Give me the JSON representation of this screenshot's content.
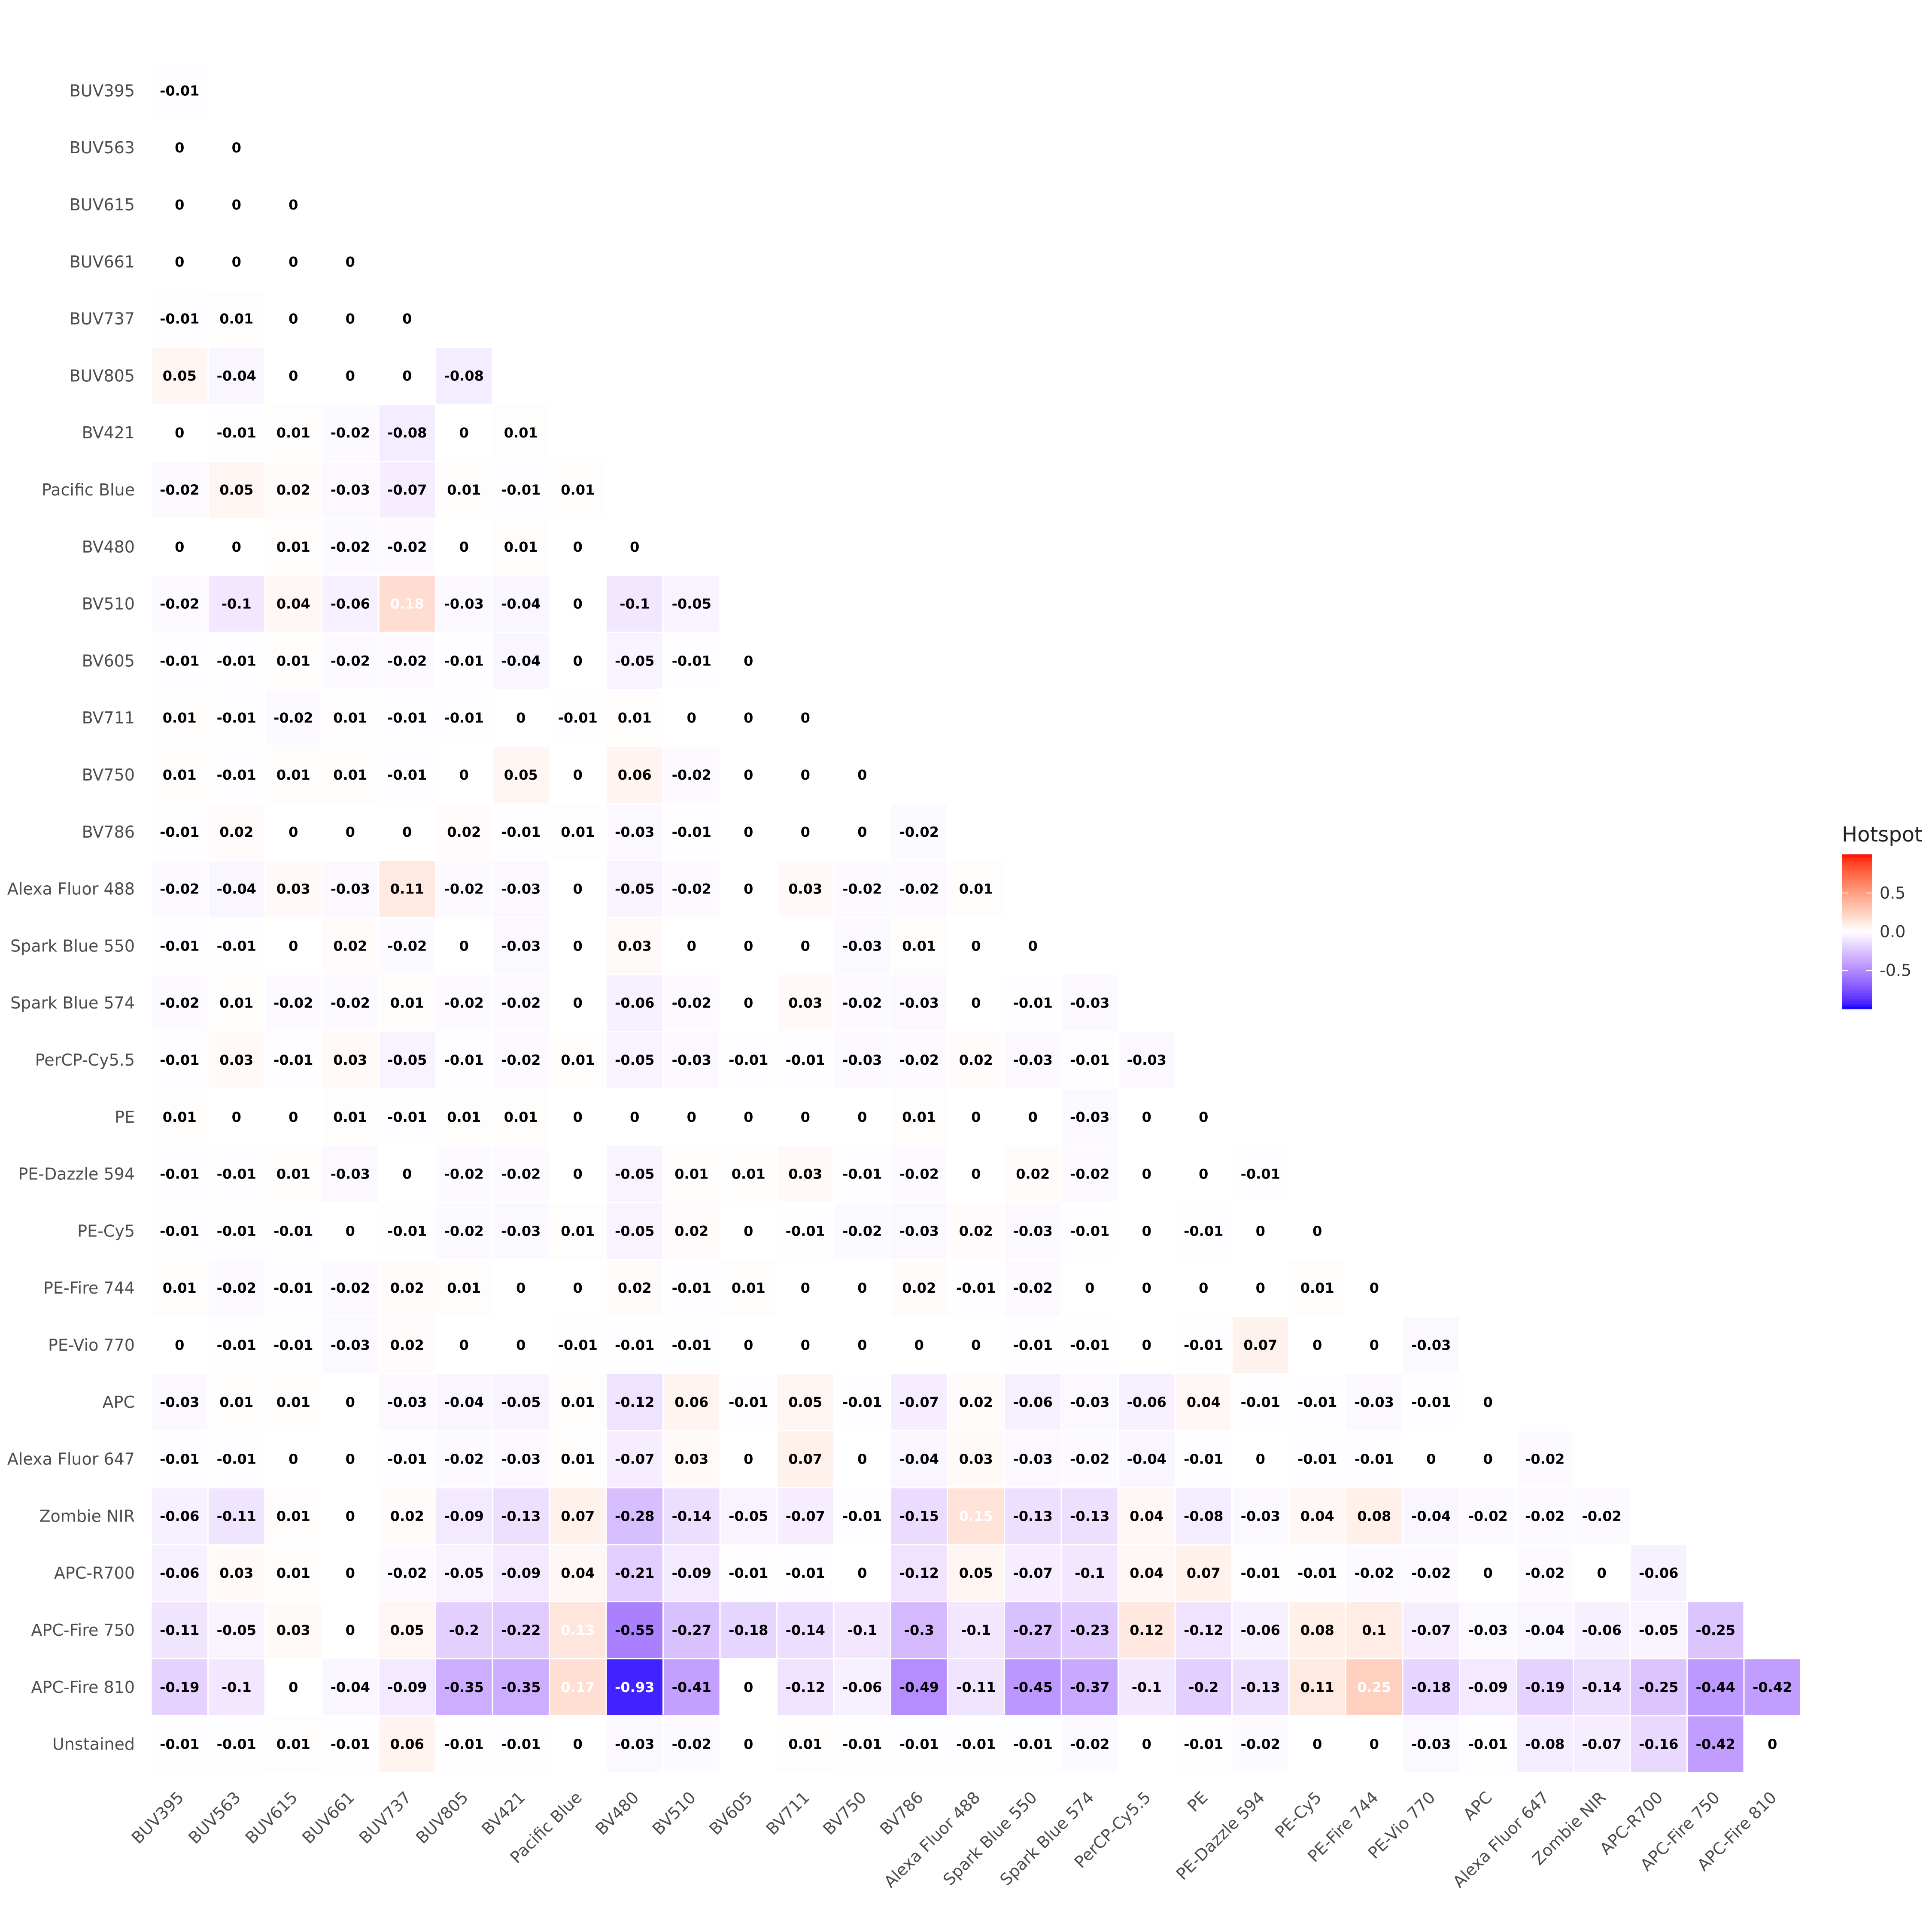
{
  "chart_data": {
    "type": "heatmap",
    "title": "",
    "xlabel": "",
    "ylabel": "",
    "color_scale": {
      "low": "#0000FF",
      "mid": "#FFFFFF",
      "high": "#FF0000",
      "limits": [
        -1,
        1
      ]
    },
    "legend": {
      "title": "Hotspot",
      "ticks": [
        0.5,
        0.0,
        -0.5
      ],
      "tick_labels": [
        "0.5",
        "0.0",
        "-0.5"
      ],
      "placement": "right"
    },
    "columns": [
      "BUV395",
      "BUV563",
      "BUV615",
      "BUV661",
      "BUV737",
      "BUV805",
      "BV421",
      "Pacific Blue",
      "BV480",
      "BV510",
      "BV605",
      "BV711",
      "BV750",
      "BV786",
      "Alexa Fluor 488",
      "Spark Blue 550",
      "Spark Blue 574",
      "PerCP-Cy5.5",
      "PE",
      "PE-Dazzle 594",
      "PE-Cy5",
      "PE-Fire 744",
      "PE-Vio 770",
      "APC",
      "Alexa Fluor 647",
      "Zombie NIR",
      "APC-R700",
      "APC-Fire 750",
      "APC-Fire 810"
    ],
    "rows": [
      "BUV395",
      "BUV563",
      "BUV615",
      "BUV661",
      "BUV737",
      "BUV805",
      "BV421",
      "Pacific Blue",
      "BV480",
      "BV510",
      "BV605",
      "BV711",
      "BV750",
      "BV786",
      "Alexa Fluor 488",
      "Spark Blue 550",
      "Spark Blue 574",
      "PerCP-Cy5.5",
      "PE",
      "PE-Dazzle 594",
      "PE-Cy5",
      "PE-Fire 744",
      "PE-Vio 770",
      "APC",
      "Alexa Fluor 647",
      "Zombie NIR",
      "APC-R700",
      "APC-Fire 750",
      "APC-Fire 810",
      "Unstained"
    ],
    "values": [
      [
        "-0.01"
      ],
      [
        "0",
        "0"
      ],
      [
        "0",
        "0",
        "0"
      ],
      [
        "0",
        "0",
        "0",
        "0"
      ],
      [
        "-0.01",
        "0.01",
        "0",
        "0",
        "0"
      ],
      [
        "0.05",
        "-0.04",
        "0",
        "0",
        "0",
        "-0.08"
      ],
      [
        "0",
        "-0.01",
        "0.01",
        "-0.02",
        "-0.08",
        "0",
        "0.01"
      ],
      [
        "-0.02",
        "0.05",
        "0.02",
        "-0.03",
        "-0.07",
        "0.01",
        "-0.01",
        "0.01"
      ],
      [
        "0",
        "0",
        "0.01",
        "-0.02",
        "-0.02",
        "0",
        "0.01",
        "0",
        "0"
      ],
      [
        "-0.02",
        "-0.1",
        "0.04",
        "-0.06",
        "0.18",
        "-0.03",
        "-0.04",
        "0",
        "-0.1",
        "-0.05"
      ],
      [
        "-0.01",
        "-0.01",
        "0.01",
        "-0.02",
        "-0.02",
        "-0.01",
        "-0.04",
        "0",
        "-0.05",
        "-0.01",
        "0"
      ],
      [
        "0.01",
        "-0.01",
        "-0.02",
        "0.01",
        "-0.01",
        "-0.01",
        "0",
        "-0.01",
        "0.01",
        "0",
        "0",
        "0"
      ],
      [
        "0.01",
        "-0.01",
        "0.01",
        "0.01",
        "-0.01",
        "0",
        "0.05",
        "0",
        "0.06",
        "-0.02",
        "0",
        "0",
        "0"
      ],
      [
        "-0.01",
        "0.02",
        "0",
        "0",
        "0",
        "0.02",
        "-0.01",
        "0.01",
        "-0.03",
        "-0.01",
        "0",
        "0",
        "0",
        "-0.02"
      ],
      [
        "-0.02",
        "-0.04",
        "0.03",
        "-0.03",
        "0.11",
        "-0.02",
        "-0.03",
        "0",
        "-0.05",
        "-0.02",
        "0",
        "0.03",
        "-0.02",
        "-0.02",
        "0.01"
      ],
      [
        "-0.01",
        "-0.01",
        "0",
        "0.02",
        "-0.02",
        "0",
        "-0.03",
        "0",
        "0.03",
        "0",
        "0",
        "0",
        "-0.03",
        "0.01",
        "0",
        "0"
      ],
      [
        "-0.02",
        "0.01",
        "-0.02",
        "-0.02",
        "0.01",
        "-0.02",
        "-0.02",
        "0",
        "-0.06",
        "-0.02",
        "0",
        "0.03",
        "-0.02",
        "-0.03",
        "0",
        "-0.01",
        "-0.03"
      ],
      [
        "-0.01",
        "0.03",
        "-0.01",
        "0.03",
        "-0.05",
        "-0.01",
        "-0.02",
        "0.01",
        "-0.05",
        "-0.03",
        "-0.01",
        "-0.01",
        "-0.03",
        "-0.02",
        "0.02",
        "-0.03",
        "-0.01",
        "-0.03"
      ],
      [
        "0.01",
        "0",
        "0",
        "0.01",
        "-0.01",
        "0.01",
        "0.01",
        "0",
        "0",
        "0",
        "0",
        "0",
        "0",
        "0.01",
        "0",
        "0",
        "-0.03",
        "0",
        "0"
      ],
      [
        "-0.01",
        "-0.01",
        "0.01",
        "-0.03",
        "0",
        "-0.02",
        "-0.02",
        "0",
        "-0.05",
        "0.01",
        "0.01",
        "0.03",
        "-0.01",
        "-0.02",
        "0",
        "0.02",
        "-0.02",
        "0",
        "0",
        "-0.01"
      ],
      [
        "-0.01",
        "-0.01",
        "-0.01",
        "0",
        "-0.01",
        "-0.02",
        "-0.03",
        "0.01",
        "-0.05",
        "0.02",
        "0",
        "-0.01",
        "-0.02",
        "-0.03",
        "0.02",
        "-0.03",
        "-0.01",
        "0",
        "-0.01",
        "0",
        "0"
      ],
      [
        "0.01",
        "-0.02",
        "-0.01",
        "-0.02",
        "0.02",
        "0.01",
        "0",
        "0",
        "0.02",
        "-0.01",
        "0.01",
        "0",
        "0",
        "0.02",
        "-0.01",
        "-0.02",
        "0",
        "0",
        "0",
        "0",
        "0.01",
        "0"
      ],
      [
        "0",
        "-0.01",
        "-0.01",
        "-0.03",
        "0.02",
        "0",
        "0",
        "-0.01",
        "-0.01",
        "-0.01",
        "0",
        "0",
        "0",
        "0",
        "0",
        "-0.01",
        "-0.01",
        "0",
        "-0.01",
        "0.07",
        "0",
        "0",
        "-0.03"
      ],
      [
        "-0.03",
        "0.01",
        "0.01",
        "0",
        "-0.03",
        "-0.04",
        "-0.05",
        "0.01",
        "-0.12",
        "0.06",
        "-0.01",
        "0.05",
        "-0.01",
        "-0.07",
        "0.02",
        "-0.06",
        "-0.03",
        "-0.06",
        "0.04",
        "-0.01",
        "-0.01",
        "-0.03",
        "-0.01",
        "0"
      ],
      [
        "-0.01",
        "-0.01",
        "0",
        "0",
        "-0.01",
        "-0.02",
        "-0.03",
        "0.01",
        "-0.07",
        "0.03",
        "0",
        "0.07",
        "0",
        "-0.04",
        "0.03",
        "-0.03",
        "-0.02",
        "-0.04",
        "-0.01",
        "0",
        "-0.01",
        "-0.01",
        "0",
        "0",
        "-0.02"
      ],
      [
        "-0.06",
        "-0.11",
        "0.01",
        "0",
        "0.02",
        "-0.09",
        "-0.13",
        "0.07",
        "-0.28",
        "-0.14",
        "-0.05",
        "-0.07",
        "-0.01",
        "-0.15",
        "0.15",
        "-0.13",
        "-0.13",
        "0.04",
        "-0.08",
        "-0.03",
        "0.04",
        "0.08",
        "-0.04",
        "-0.02",
        "-0.02",
        "-0.02"
      ],
      [
        "-0.06",
        "0.03",
        "0.01",
        "0",
        "-0.02",
        "-0.05",
        "-0.09",
        "0.04",
        "-0.21",
        "-0.09",
        "-0.01",
        "-0.01",
        "0",
        "-0.12",
        "0.05",
        "-0.07",
        "-0.1",
        "0.04",
        "0.07",
        "-0.01",
        "-0.01",
        "-0.02",
        "-0.02",
        "0",
        "-0.02",
        "0",
        "-0.06"
      ],
      [
        "-0.11",
        "-0.05",
        "0.03",
        "0",
        "0.05",
        "-0.2",
        "-0.22",
        "0.13",
        "-0.55",
        "-0.27",
        "-0.18",
        "-0.14",
        "-0.1",
        "-0.3",
        "-0.1",
        "-0.27",
        "-0.23",
        "0.12",
        "-0.12",
        "-0.06",
        "0.08",
        "0.1",
        "-0.07",
        "-0.03",
        "-0.04",
        "-0.06",
        "-0.05",
        "-0.25"
      ],
      [
        "-0.19",
        "-0.1",
        "0",
        "-0.04",
        "-0.09",
        "-0.35",
        "-0.35",
        "0.17",
        "-0.93",
        "-0.41",
        "0",
        "-0.12",
        "-0.06",
        "-0.49",
        "-0.11",
        "-0.45",
        "-0.37",
        "-0.1",
        "-0.2",
        "-0.13",
        "0.11",
        "0.25",
        "-0.18",
        "-0.09",
        "-0.19",
        "-0.14",
        "-0.25",
        "-0.44",
        "-0.42"
      ],
      [
        "-0.01",
        "-0.01",
        "0.01",
        "-0.01",
        "0.06",
        "-0.01",
        "-0.01",
        "0",
        "-0.03",
        "-0.02",
        "0",
        "0.01",
        "-0.01",
        "-0.01",
        "-0.01",
        "-0.01",
        "-0.02",
        "0",
        "-0.01",
        "-0.02",
        "0",
        "0",
        "-0.03",
        "-0.01",
        "-0.08",
        "-0.07",
        "-0.16",
        "-0.42",
        "0"
      ]
    ]
  }
}
